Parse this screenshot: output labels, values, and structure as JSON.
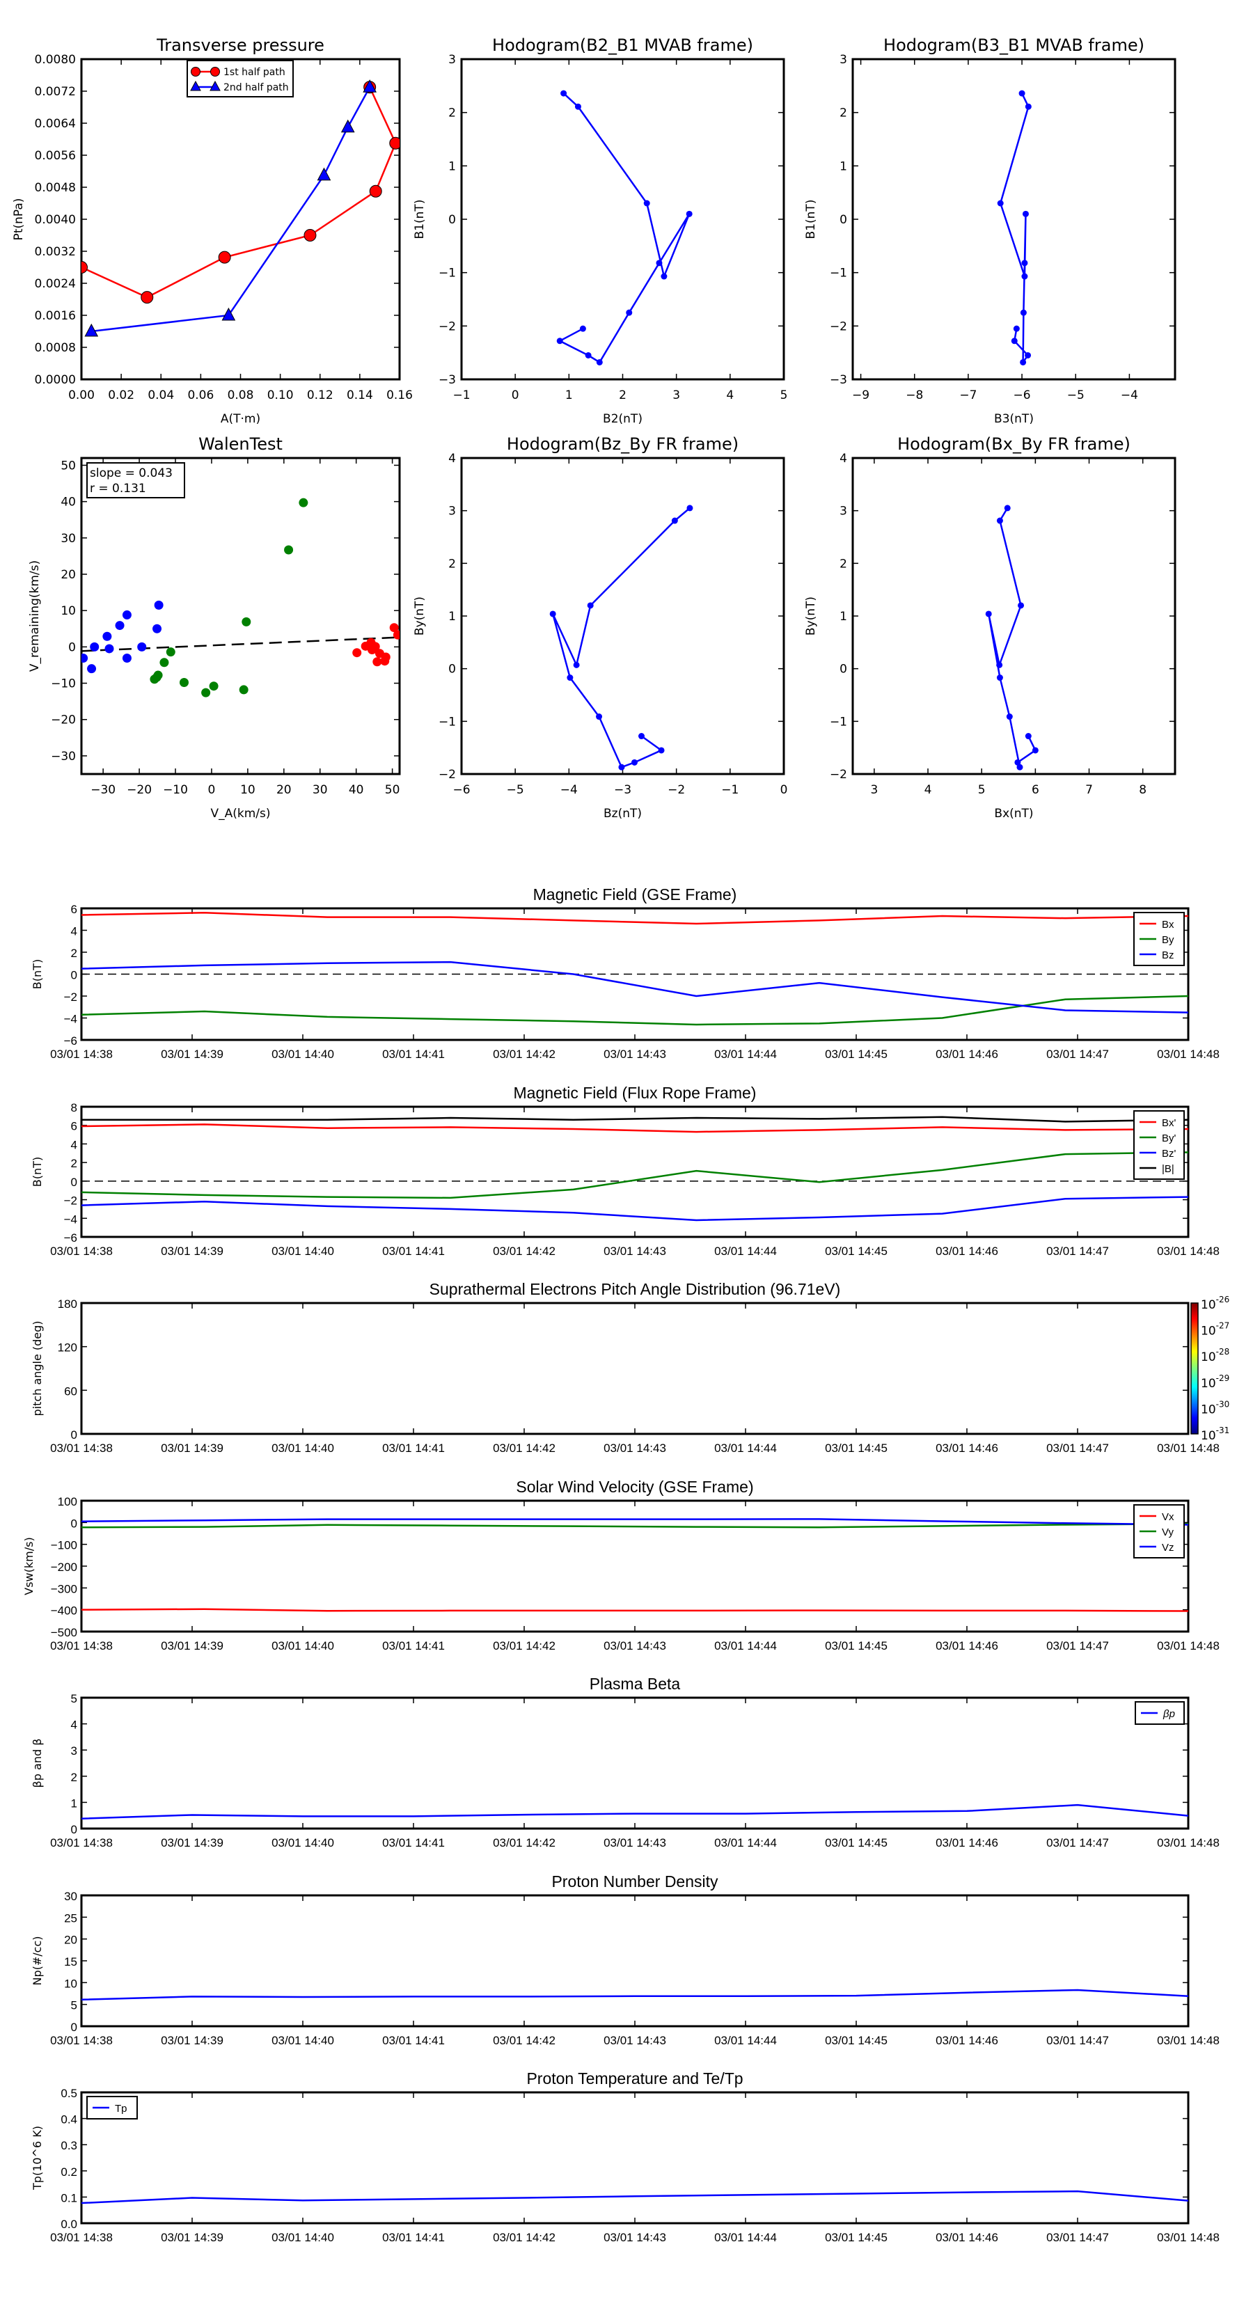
{
  "chart_data": [
    {
      "id": "transverse_pressure",
      "type": "line",
      "title": "Transverse pressure",
      "xlabel": "A(T·m)",
      "ylabel": "Pt(nPa)",
      "xlim": [
        0.0,
        0.16
      ],
      "ylim": [
        0.0,
        0.008
      ],
      "xticks": [
        0.0,
        0.02,
        0.04,
        0.06,
        0.08,
        0.1,
        0.12,
        0.14,
        0.16
      ],
      "xtick_labels": [
        "0.00",
        "0.02",
        "0.04",
        "0.06",
        "0.08",
        "0.10",
        "0.12",
        "0.14",
        "0.16"
      ],
      "yticks": [
        0,
        0.0008,
        0.0016,
        0.0024,
        0.0032,
        0.004,
        0.0048,
        0.0056,
        0.0064,
        0.0072,
        0.008
      ],
      "ytick_labels": [
        "0.0000",
        "0.0008",
        "0.0016",
        "0.0024",
        "0.0032",
        "0.0040",
        "0.0048",
        "0.0056",
        "0.0064",
        "0.0072",
        "0.0080"
      ],
      "legend_position": "top-center",
      "series": [
        {
          "name": "1st half path",
          "color": "#ff0000",
          "marker": "circle",
          "x": [
            0.0,
            0.033,
            0.072,
            0.115,
            0.148,
            0.158,
            0.145
          ],
          "y": [
            0.0028,
            0.00205,
            0.00305,
            0.0036,
            0.0047,
            0.0059,
            0.0073
          ]
        },
        {
          "name": "2nd half path",
          "color": "#0000ff",
          "marker": "triangle",
          "x": [
            0.145,
            0.134,
            0.122,
            0.074,
            0.005
          ],
          "y": [
            0.0073,
            0.0063,
            0.0051,
            0.0016,
            0.0012
          ]
        }
      ]
    },
    {
      "id": "hodo_b2_b1",
      "type": "line",
      "title": "Hodogram(B2_B1 MVAB frame)",
      "xlabel": "B2(nT)",
      "ylabel": "B1(nT)",
      "xlim": [
        -1,
        5
      ],
      "ylim": [
        -3,
        3
      ],
      "xticks": [
        -1,
        0,
        1,
        2,
        3,
        4,
        5
      ],
      "xtick_labels": [
        "−1",
        "0",
        "1",
        "2",
        "3",
        "4",
        "5"
      ],
      "yticks": [
        -3,
        -2,
        -1,
        0,
        1,
        2,
        3
      ],
      "ytick_labels": [
        "−3",
        "−2",
        "−1",
        "0",
        "1",
        "2",
        "3"
      ],
      "series": [
        {
          "name": "hodogram",
          "color": "#0000ff",
          "marker": "dot",
          "x": [
            0.9,
            1.17,
            2.45,
            2.77,
            3.24,
            2.68,
            2.12,
            1.57,
            1.36,
            0.83,
            1.26
          ],
          "y": [
            2.36,
            2.11,
            0.3,
            -1.07,
            0.1,
            -0.82,
            -1.75,
            -2.68,
            -2.55,
            -2.28,
            -2.05
          ]
        }
      ]
    },
    {
      "id": "hodo_b3_b1",
      "type": "line",
      "title": "Hodogram(B3_B1 MVAB frame)",
      "xlabel": "B3(nT)",
      "ylabel": "B1(nT)",
      "xlim": [
        -9.15,
        -3.15
      ],
      "ylim": [
        -3,
        3
      ],
      "xticks": [
        -9,
        -8,
        -7,
        -6,
        -5,
        -4
      ],
      "xtick_labels": [
        "−9",
        "−8",
        "−7",
        "−6",
        "−5",
        "−4"
      ],
      "yticks": [
        -3,
        -2,
        -1,
        0,
        1,
        2,
        3
      ],
      "ytick_labels": [
        "−3",
        "−2",
        "−1",
        "0",
        "1",
        "2",
        "3"
      ],
      "series": [
        {
          "name": "hodogram",
          "color": "#0000ff",
          "marker": "dot",
          "x": [
            -6.0,
            -5.88,
            -6.4,
            -5.95,
            -5.93,
            -5.95,
            -5.97,
            -5.98,
            -5.89,
            -6.14,
            -6.1
          ],
          "y": [
            2.36,
            2.11,
            0.3,
            -1.07,
            0.1,
            -0.82,
            -1.75,
            -2.68,
            -2.55,
            -2.28,
            -2.05
          ]
        }
      ]
    },
    {
      "id": "walen_test",
      "type": "scatter",
      "title": "WalenTest",
      "xlabel": "V_A(km/s)",
      "ylabel": "V_remaining(km/s)",
      "xlim": [
        -36,
        52
      ],
      "ylim": [
        -35,
        52
      ],
      "xticks": [
        -30,
        -20,
        -10,
        0,
        10,
        20,
        30,
        40,
        50
      ],
      "xtick_labels": [
        "−30",
        "−20",
        "−10",
        "0",
        "10",
        "20",
        "30",
        "40",
        "50"
      ],
      "yticks": [
        -30,
        -20,
        -10,
        0,
        10,
        20,
        30,
        40,
        50
      ],
      "ytick_labels": [
        "−30",
        "−20",
        "−10",
        "0",
        "10",
        "20",
        "30",
        "40",
        "50"
      ],
      "annotation": {
        "slope_text": "slope = 0.043",
        "r_text": "r = 0.131"
      },
      "fit_line": {
        "slope": 0.043,
        "intercept": 0.4,
        "style": "dashed",
        "color": "#000000"
      },
      "series": [
        {
          "name": "group1",
          "color": "#0000ff",
          "x": [
            -35.5,
            -33.2,
            -32.4,
            -28.9,
            -28.3,
            -25.4,
            -23.4,
            -23.4,
            -19.3,
            -15.1,
            -14.6
          ],
          "y": [
            -3.1,
            -6.0,
            0.0,
            2.9,
            -0.5,
            5.9,
            8.8,
            -3.1,
            0.0,
            5.0,
            11.5
          ]
        },
        {
          "name": "group2",
          "color": "#008000",
          "x": [
            -15.8,
            -15.2,
            -14.8,
            -13.1,
            -11.3,
            -7.6,
            -1.6,
            0.6,
            8.9,
            9.6,
            21.3,
            25.4
          ],
          "y": [
            -8.9,
            -8.4,
            -7.8,
            -4.3,
            -1.4,
            -9.8,
            -12.6,
            -10.8,
            -11.8,
            6.9,
            26.7,
            39.7
          ]
        },
        {
          "name": "group3",
          "color": "#ff0000",
          "x": [
            40.2,
            42.6,
            44.1,
            44.4,
            45.3,
            45.8,
            46.5,
            47.9,
            48.2,
            50.5,
            51.5
          ],
          "y": [
            -1.6,
            0.2,
            1.2,
            -0.8,
            0.1,
            -4.1,
            -1.8,
            -3.9,
            -2.8,
            5.3,
            3.3
          ]
        }
      ]
    },
    {
      "id": "hodo_bz_by",
      "type": "line",
      "title": "Hodogram(Bz_By FR frame)",
      "xlabel": "Bz(nT)",
      "ylabel": "By(nT)",
      "xlim": [
        -6,
        0
      ],
      "ylim": [
        -2,
        4
      ],
      "xticks": [
        -6,
        -5,
        -4,
        -3,
        -2,
        -1,
        0
      ],
      "xtick_labels": [
        "−6",
        "−5",
        "−4",
        "−3",
        "−2",
        "−1",
        "0"
      ],
      "yticks": [
        -2,
        -1,
        0,
        1,
        2,
        3,
        4
      ],
      "ytick_labels": [
        "−2",
        "−1",
        "0",
        "1",
        "2",
        "3",
        "4"
      ],
      "series": [
        {
          "name": "hodogram",
          "color": "#0000ff",
          "marker": "dot",
          "x": [
            -1.75,
            -2.03,
            -3.6,
            -3.86,
            -4.3,
            -3.98,
            -3.44,
            -3.02,
            -2.78,
            -2.28,
            -2.65
          ],
          "y": [
            3.05,
            2.81,
            1.2,
            0.07,
            1.04,
            -0.17,
            -0.91,
            -1.87,
            -1.78,
            -1.55,
            -1.28
          ]
        }
      ]
    },
    {
      "id": "hodo_bx_by",
      "type": "line",
      "title": "Hodogram(Bx_By FR frame)",
      "xlabel": "Bx(nT)",
      "ylabel": "By(nT)",
      "xlim": [
        2.6,
        8.6
      ],
      "ylim": [
        -2,
        4
      ],
      "xticks": [
        3,
        4,
        5,
        6,
        7,
        8
      ],
      "xtick_labels": [
        "3",
        "4",
        "5",
        "6",
        "7",
        "8"
      ],
      "yticks": [
        -2,
        -1,
        0,
        1,
        2,
        3,
        4
      ],
      "ytick_labels": [
        "−2",
        "−1",
        "0",
        "1",
        "2",
        "3",
        "4"
      ],
      "series": [
        {
          "name": "hodogram",
          "color": "#0000ff",
          "marker": "dot",
          "x": [
            5.48,
            5.34,
            5.73,
            5.33,
            5.13,
            5.34,
            5.52,
            5.71,
            5.67,
            6.0,
            5.87
          ],
          "y": [
            3.05,
            2.81,
            1.2,
            0.07,
            1.04,
            -0.17,
            -0.91,
            -1.87,
            -1.78,
            -1.55,
            -1.28
          ]
        }
      ]
    },
    {
      "id": "mag_gse",
      "type": "line",
      "title": "Magnetic Field (GSE Frame)",
      "ylabel": "B(nT)",
      "ylim": [
        -6,
        6
      ],
      "yticks": [
        -6,
        -4,
        -2,
        0,
        2,
        4,
        6
      ],
      "ytick_labels": [
        "−6",
        "−4",
        "−2",
        "0",
        "2",
        "4",
        "6"
      ],
      "zero_line": true,
      "legend_position": "top-right",
      "series": [
        {
          "name": "Bx",
          "color": "#ff0000",
          "values": [
            5.4,
            5.6,
            5.2,
            5.2,
            4.9,
            4.6,
            4.9,
            5.3,
            5.1,
            5.3
          ]
        },
        {
          "name": "By",
          "color": "#008000",
          "values": [
            -3.7,
            -3.4,
            -3.9,
            -4.1,
            -4.3,
            -4.6,
            -4.5,
            -4.0,
            -2.3,
            -2.0
          ]
        },
        {
          "name": "Bz",
          "color": "#0000ff",
          "values": [
            0.5,
            0.8,
            1.0,
            1.1,
            0.0,
            -2.0,
            -0.8,
            -2.1,
            -3.3,
            -3.5
          ]
        }
      ]
    },
    {
      "id": "mag_fr",
      "type": "line",
      "title": "Magnetic Field (Flux Rope Frame)",
      "ylabel": "B(nT)",
      "ylim": [
        -6,
        8
      ],
      "yticks": [
        -6,
        -4,
        -2,
        0,
        2,
        4,
        6,
        8
      ],
      "ytick_labels": [
        "−6",
        "−4",
        "−2",
        "0",
        "2",
        "4",
        "6",
        "8"
      ],
      "zero_line": true,
      "legend_position": "top-right",
      "series": [
        {
          "name": "Bx'",
          "color": "#ff0000",
          "values": [
            5.9,
            6.1,
            5.7,
            5.8,
            5.6,
            5.3,
            5.5,
            5.8,
            5.5,
            5.6
          ]
        },
        {
          "name": "By'",
          "color": "#008000",
          "values": [
            -1.2,
            -1.5,
            -1.7,
            -1.8,
            -0.9,
            1.1,
            -0.1,
            1.2,
            2.9,
            3.1
          ]
        },
        {
          "name": "Bz'",
          "color": "#0000ff",
          "values": [
            -2.6,
            -2.2,
            -2.7,
            -3.0,
            -3.4,
            -4.2,
            -3.9,
            -3.5,
            -1.9,
            -1.7
          ]
        },
        {
          "name": "|B|",
          "color": "#000000",
          "values": [
            6.6,
            6.6,
            6.6,
            6.8,
            6.6,
            6.8,
            6.7,
            6.9,
            6.4,
            6.6
          ]
        }
      ]
    },
    {
      "id": "pad",
      "type": "heatmap",
      "title": "Suprathermal Electrons Pitch Angle Distribution (96.71eV)",
      "ylabel": "pitch angle (deg)",
      "ylim": [
        0,
        180
      ],
      "yticks": [
        0,
        60,
        120,
        180
      ],
      "ytick_labels": [
        "0",
        "60",
        "120",
        "180"
      ],
      "colorbar": {
        "scale": "log",
        "min_exp": -31,
        "max_exp": -26,
        "tick_labels": [
          "10-26",
          "10-27",
          "10-28",
          "10-29",
          "10-30",
          "10-31"
        ]
      },
      "series": []
    },
    {
      "id": "vsw",
      "type": "line",
      "title": "Solar Wind Velocity (GSE Frame)",
      "ylabel": "Vsw(km/s)",
      "ylim": [
        -500,
        100
      ],
      "yticks": [
        -500,
        -400,
        -300,
        -200,
        -100,
        0,
        100
      ],
      "ytick_labels": [
        "−500",
        "−400",
        "−300",
        "−200",
        "−100",
        "0",
        "100"
      ],
      "legend_position": "top-right",
      "series": [
        {
          "name": "Vx",
          "color": "#ff0000",
          "values": [
            -400,
            -397,
            -405,
            -404,
            -404,
            -404,
            -403,
            -404,
            -404,
            -406
          ]
        },
        {
          "name": "Vy",
          "color": "#008000",
          "values": [
            -22,
            -20,
            -11,
            -14,
            -17,
            -20,
            -22,
            -16,
            -10,
            -6
          ]
        },
        {
          "name": "Vz",
          "color": "#0000ff",
          "values": [
            5,
            10,
            15,
            15,
            15,
            15,
            16,
            6,
            -3,
            -10
          ]
        }
      ]
    },
    {
      "id": "beta",
      "type": "line",
      "title": "Plasma Beta",
      "ylabel": "βp and β",
      "ylim": [
        0,
        5
      ],
      "yticks": [
        0,
        1,
        2,
        3,
        4,
        5
      ],
      "ytick_labels": [
        "0",
        "1",
        "2",
        "3",
        "4",
        "5"
      ],
      "legend_position": "top-right",
      "series": [
        {
          "name": "βp",
          "color": "#0000ff",
          "values": [
            0.38,
            0.52,
            0.47,
            0.47,
            0.53,
            0.57,
            0.57,
            0.63,
            0.67,
            0.9,
            0.49
          ]
        }
      ]
    },
    {
      "id": "np",
      "type": "line",
      "title": "Proton Number Density",
      "ylabel": "Np(#/cc)",
      "ylim": [
        0,
        30
      ],
      "yticks": [
        0,
        5,
        10,
        15,
        20,
        25,
        30
      ],
      "ytick_labels": [
        "0",
        "5",
        "10",
        "15",
        "20",
        "25",
        "30"
      ],
      "series": [
        {
          "name": "Np",
          "color": "#0000ff",
          "values": [
            6.1,
            6.8,
            6.7,
            6.8,
            6.8,
            6.9,
            6.9,
            7.0,
            7.7,
            8.3,
            6.9
          ]
        }
      ]
    },
    {
      "id": "tp",
      "type": "line",
      "title": "Proton Temperature and Te/Tp",
      "ylabel": "Tp(10^6 K)",
      "ylim": [
        0,
        0.5
      ],
      "yticks": [
        0,
        0.1,
        0.2,
        0.3,
        0.4,
        0.5
      ],
      "ytick_labels": [
        "0.0",
        "0.1",
        "0.2",
        "0.3",
        "0.4",
        "0.5"
      ],
      "legend_position": "top-left",
      "series": [
        {
          "name": "Tp",
          "color": "#0000ff",
          "values": [
            0.077,
            0.097,
            0.087,
            0.092,
            0.097,
            0.103,
            0.108,
            0.113,
            0.118,
            0.122,
            0.086
          ]
        }
      ]
    }
  ],
  "time_axis": {
    "tick_labels": [
      "03/01 14:38",
      "03/01 14:39",
      "03/01 14:40",
      "03/01 14:41",
      "03/01 14:42",
      "03/01 14:43",
      "03/01 14:44",
      "03/01 14:45",
      "03/01 14:46",
      "03/01 14:47",
      "03/01 14:48"
    ]
  }
}
